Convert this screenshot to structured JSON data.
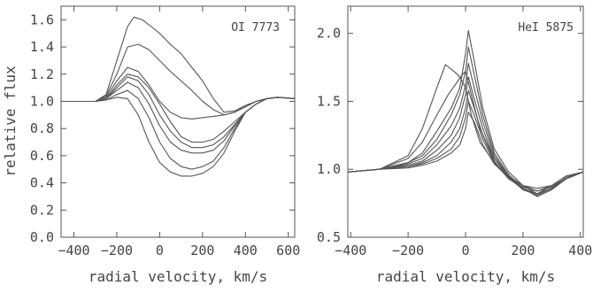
{
  "chart_data": [
    {
      "type": "line",
      "title": "OI 7773",
      "xlabel": "radial velocity, km/s",
      "ylabel": "relative flux",
      "xlim": [
        -460,
        630
      ],
      "ylim": [
        0.0,
        1.7
      ],
      "xticks": [
        -400,
        -200,
        0,
        200,
        400,
        600
      ],
      "xtick_labels": [
        "−400",
        "−200",
        "0",
        "200",
        "400",
        "600"
      ],
      "yticks": [
        0.0,
        0.2,
        0.4,
        0.6,
        0.8,
        1.0,
        1.2,
        1.4,
        1.6
      ],
      "ytick_labels": [
        "0.0",
        "0.2",
        "0.4",
        "0.6",
        "0.8",
        "1.0",
        "1.2",
        "1.4",
        "1.6"
      ],
      "line_color": "#555555",
      "series": [
        {
          "x": [
            -460,
            -400,
            -300,
            -250,
            -200,
            -150,
            -120,
            -80,
            -40,
            0,
            50,
            100,
            150,
            200,
            250,
            300,
            350,
            400,
            450,
            500,
            550,
            630
          ],
          "y": [
            1.0,
            1.0,
            1.0,
            1.05,
            1.3,
            1.55,
            1.62,
            1.6,
            1.55,
            1.5,
            1.42,
            1.35,
            1.25,
            1.15,
            1.02,
            0.92,
            0.93,
            0.97,
            1.0,
            1.02,
            1.03,
            1.02
          ]
        },
        {
          "x": [
            -460,
            -400,
            -300,
            -250,
            -200,
            -150,
            -100,
            -50,
            0,
            50,
            100,
            150,
            200,
            250,
            300,
            350,
            400,
            450,
            500,
            550,
            630
          ],
          "y": [
            1.0,
            1.0,
            1.0,
            1.04,
            1.2,
            1.4,
            1.42,
            1.38,
            1.3,
            1.22,
            1.15,
            1.08,
            1.0,
            0.94,
            0.9,
            0.92,
            0.96,
            1.0,
            1.02,
            1.03,
            1.02
          ]
        },
        {
          "x": [
            -460,
            -400,
            -300,
            -250,
            -200,
            -150,
            -100,
            -50,
            0,
            50,
            100,
            150,
            200,
            250,
            300,
            350,
            400,
            450,
            500,
            550,
            630
          ],
          "y": [
            1.0,
            1.0,
            1.0,
            1.03,
            1.15,
            1.25,
            1.22,
            1.12,
            1.0,
            0.92,
            0.88,
            0.87,
            0.88,
            0.89,
            0.9,
            0.92,
            0.96,
            1.0,
            1.02,
            1.03,
            1.02
          ]
        },
        {
          "x": [
            -460,
            -400,
            -300,
            -250,
            -200,
            -150,
            -100,
            -50,
            0,
            50,
            100,
            150,
            200,
            250,
            300,
            350,
            400,
            450,
            500,
            550,
            630
          ],
          "y": [
            1.0,
            1.0,
            1.0,
            1.02,
            1.12,
            1.2,
            1.18,
            1.1,
            0.98,
            0.85,
            0.74,
            0.7,
            0.7,
            0.72,
            0.78,
            0.85,
            0.92,
            0.98,
            1.02,
            1.03,
            1.02
          ]
        },
        {
          "x": [
            -460,
            -400,
            -300,
            -250,
            -200,
            -150,
            -100,
            -50,
            0,
            50,
            100,
            150,
            200,
            250,
            300,
            350,
            400,
            450,
            500,
            550,
            630
          ],
          "y": [
            1.0,
            1.0,
            1.0,
            1.02,
            1.1,
            1.18,
            1.15,
            1.05,
            0.9,
            0.78,
            0.7,
            0.66,
            0.66,
            0.68,
            0.74,
            0.83,
            0.92,
            0.98,
            1.02,
            1.03,
            1.02
          ]
        },
        {
          "x": [
            -460,
            -400,
            -300,
            -250,
            -200,
            -150,
            -100,
            -50,
            0,
            50,
            100,
            150,
            200,
            250,
            300,
            350,
            400,
            450,
            500,
            550,
            630
          ],
          "y": [
            1.0,
            1.0,
            1.0,
            1.02,
            1.08,
            1.14,
            1.1,
            0.98,
            0.82,
            0.7,
            0.64,
            0.62,
            0.62,
            0.64,
            0.71,
            0.82,
            0.92,
            0.98,
            1.02,
            1.03,
            1.02
          ]
        },
        {
          "x": [
            -460,
            -400,
            -300,
            -250,
            -200,
            -150,
            -100,
            -50,
            0,
            50,
            100,
            150,
            200,
            250,
            300,
            350,
            400,
            450,
            500,
            550,
            630
          ],
          "y": [
            1.0,
            1.0,
            1.0,
            1.01,
            1.05,
            1.08,
            1.02,
            0.88,
            0.7,
            0.58,
            0.52,
            0.5,
            0.52,
            0.56,
            0.66,
            0.8,
            0.92,
            0.98,
            1.02,
            1.03,
            1.02
          ]
        },
        {
          "x": [
            -460,
            -400,
            -300,
            -250,
            -200,
            -150,
            -100,
            -50,
            0,
            50,
            100,
            150,
            200,
            250,
            300,
            350,
            400,
            450,
            500,
            550,
            630
          ],
          "y": [
            1.0,
            1.0,
            1.0,
            1.01,
            1.03,
            1.02,
            0.9,
            0.7,
            0.55,
            0.48,
            0.45,
            0.45,
            0.47,
            0.52,
            0.62,
            0.78,
            0.92,
            0.98,
            1.02,
            1.03,
            1.02
          ]
        }
      ]
    },
    {
      "type": "line",
      "title": "HeI 5875",
      "xlabel": "radial velocity, km/s",
      "ylabel": "",
      "xlim": [
        -410,
        410
      ],
      "ylim": [
        0.5,
        2.2
      ],
      "xticks": [
        -400,
        -200,
        0,
        200,
        400
      ],
      "xtick_labels": [
        "−400",
        "−200",
        "0",
        "200",
        "400"
      ],
      "yticks": [
        0.5,
        1.0,
        1.5,
        2.0
      ],
      "ytick_labels": [
        "0.5",
        "1.0",
        "1.5",
        "2.0"
      ],
      "line_color": "#555555",
      "series": [
        {
          "x": [
            -410,
            -300,
            -200,
            -150,
            -100,
            -70,
            -40,
            -20,
            0,
            20,
            50,
            100,
            150,
            200,
            250,
            300,
            350,
            410
          ],
          "y": [
            0.98,
            1.0,
            1.1,
            1.3,
            1.6,
            1.77,
            1.72,
            1.68,
            1.6,
            1.4,
            1.2,
            1.05,
            0.95,
            0.85,
            0.82,
            0.88,
            0.95,
            0.98
          ]
        },
        {
          "x": [
            -410,
            -300,
            -200,
            -150,
            -100,
            -60,
            -30,
            -10,
            0,
            20,
            50,
            100,
            150,
            200,
            250,
            300,
            350,
            410
          ],
          "y": [
            0.98,
            1.0,
            1.08,
            1.2,
            1.4,
            1.55,
            1.64,
            1.7,
            1.72,
            1.55,
            1.3,
            1.08,
            0.95,
            0.88,
            0.84,
            0.88,
            0.95,
            0.98
          ]
        },
        {
          "x": [
            -410,
            -300,
            -200,
            -150,
            -100,
            -50,
            -20,
            0,
            10,
            30,
            60,
            100,
            150,
            200,
            250,
            300,
            350,
            410
          ],
          "y": [
            0.98,
            1.0,
            1.05,
            1.12,
            1.28,
            1.45,
            1.6,
            1.85,
            2.02,
            1.8,
            1.45,
            1.15,
            0.98,
            0.88,
            0.82,
            0.86,
            0.94,
            0.98
          ]
        },
        {
          "x": [
            -410,
            -300,
            -200,
            -150,
            -100,
            -50,
            -20,
            0,
            10,
            30,
            60,
            100,
            150,
            200,
            250,
            300,
            350,
            410
          ],
          "y": [
            0.98,
            1.0,
            1.05,
            1.1,
            1.22,
            1.4,
            1.55,
            1.72,
            1.9,
            1.7,
            1.4,
            1.12,
            0.96,
            0.86,
            0.8,
            0.85,
            0.93,
            0.98
          ]
        },
        {
          "x": [
            -410,
            -300,
            -200,
            -150,
            -100,
            -50,
            -20,
            0,
            10,
            30,
            60,
            100,
            150,
            200,
            250,
            300,
            350,
            410
          ],
          "y": [
            0.98,
            1.0,
            1.04,
            1.08,
            1.18,
            1.32,
            1.45,
            1.62,
            1.78,
            1.6,
            1.35,
            1.1,
            0.95,
            0.86,
            0.8,
            0.85,
            0.93,
            0.98
          ]
        },
        {
          "x": [
            -410,
            -300,
            -200,
            -150,
            -100,
            -50,
            -20,
            0,
            10,
            30,
            60,
            100,
            150,
            200,
            250,
            300,
            350,
            410
          ],
          "y": [
            0.98,
            1.0,
            1.03,
            1.06,
            1.14,
            1.25,
            1.38,
            1.55,
            1.68,
            1.52,
            1.3,
            1.08,
            0.94,
            0.85,
            0.81,
            0.86,
            0.93,
            0.98
          ]
        },
        {
          "x": [
            -410,
            -300,
            -200,
            -150,
            -100,
            -50,
            -20,
            0,
            10,
            30,
            60,
            100,
            150,
            200,
            250,
            300,
            350,
            410
          ],
          "y": [
            0.98,
            1.0,
            1.02,
            1.05,
            1.1,
            1.2,
            1.3,
            1.45,
            1.58,
            1.45,
            1.25,
            1.06,
            0.93,
            0.86,
            0.82,
            0.86,
            0.93,
            0.98
          ]
        },
        {
          "x": [
            -410,
            -300,
            -200,
            -150,
            -100,
            -50,
            -20,
            0,
            10,
            30,
            60,
            100,
            150,
            200,
            250,
            300,
            350,
            410
          ],
          "y": [
            0.98,
            1.0,
            1.02,
            1.04,
            1.08,
            1.15,
            1.24,
            1.38,
            1.5,
            1.4,
            1.22,
            1.05,
            0.93,
            0.87,
            0.84,
            0.87,
            0.93,
            0.98
          ]
        },
        {
          "x": [
            -410,
            -300,
            -200,
            -150,
            -100,
            -50,
            -20,
            0,
            10,
            30,
            60,
            100,
            150,
            200,
            250,
            300,
            350,
            410
          ],
          "y": [
            0.98,
            1.0,
            1.01,
            1.03,
            1.06,
            1.12,
            1.18,
            1.3,
            1.42,
            1.35,
            1.18,
            1.04,
            0.94,
            0.88,
            0.86,
            0.88,
            0.93,
            0.98
          ]
        }
      ]
    }
  ]
}
